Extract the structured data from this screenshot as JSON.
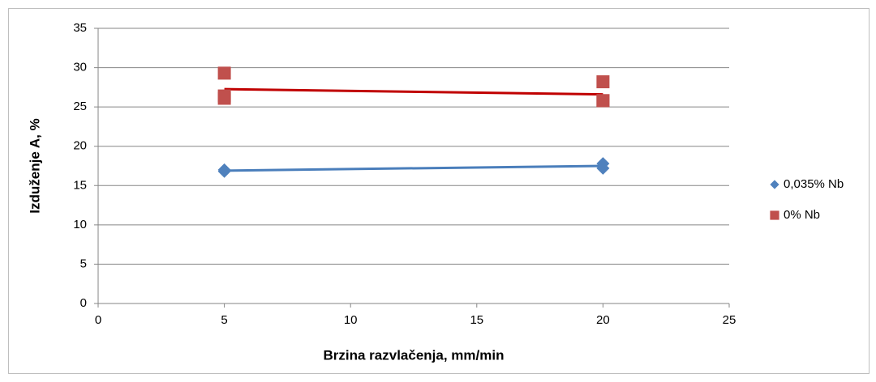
{
  "chart_data": {
    "type": "scatter",
    "xlabel": "Brzina razvlačenja, mm/min",
    "ylabel": "Izduženje A, %",
    "xlim": [
      0,
      25
    ],
    "xticks": [
      0,
      5,
      10,
      15,
      20,
      25
    ],
    "ylim": [
      0,
      35
    ],
    "yticks": [
      0,
      5,
      10,
      15,
      20,
      25,
      30,
      35
    ],
    "grid": true,
    "legend": "right",
    "series": [
      {
        "name": "0,035% Nb",
        "color": "#4f81bd",
        "marker": "diamond",
        "trendline": true,
        "trendline_color": "#4a7ebb",
        "x": [
          5,
          5,
          20,
          20
        ],
        "values": [
          17.0,
          16.8,
          17.8,
          17.2
        ]
      },
      {
        "name": "0% Nb",
        "color": "#c0504d",
        "marker": "square",
        "trendline": true,
        "trendline_color": "#c00000",
        "x": [
          5,
          5,
          5,
          20,
          20,
          20
        ],
        "values": [
          29.3,
          26.4,
          26.1,
          28.2,
          25.8,
          25.8
        ]
      }
    ]
  }
}
